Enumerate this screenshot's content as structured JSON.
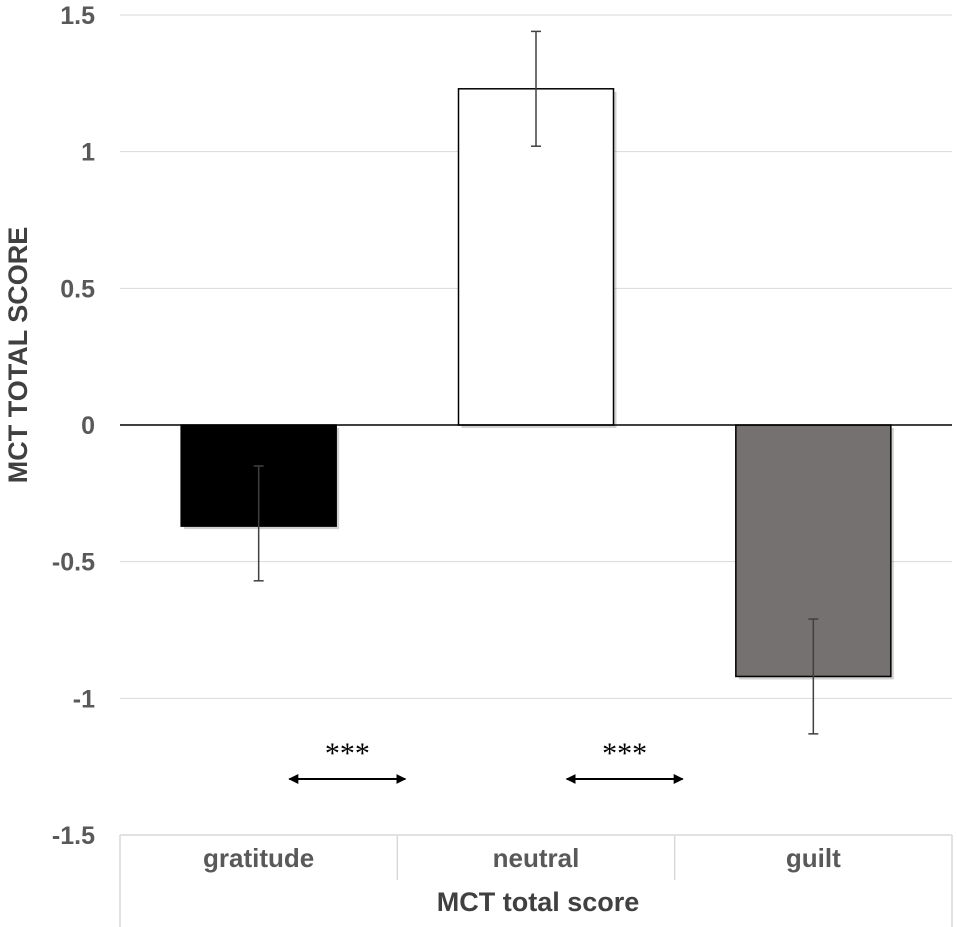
{
  "chart_data": {
    "type": "bar",
    "title": "",
    "categories": [
      "gratitude",
      "neutral",
      "guilt"
    ],
    "values": [
      -0.37,
      1.23,
      -0.92
    ],
    "error_bars": [
      {
        "low": -0.57,
        "high": -0.15
      },
      {
        "low": 1.02,
        "high": 1.44
      },
      {
        "low": -1.13,
        "high": -0.71
      }
    ],
    "bar_colors": [
      "#000000",
      "#ffffff",
      "#767171"
    ],
    "ylabel": "MCT  TOTAL  SCORE",
    "xlabel": "MCT total score",
    "ylim": [
      -1.5,
      1.5
    ],
    "yticks": [
      1.5,
      1,
      0.5,
      0,
      -0.5,
      -1,
      -1.5
    ],
    "ytick_labels": [
      "1.5",
      "1",
      "0.5",
      "0",
      "-0.5",
      "-1",
      "-1.5"
    ],
    "grid": true,
    "legend": "none",
    "annotations": [
      {
        "text": "***",
        "between": [
          "gratitude",
          "neutral"
        ]
      },
      {
        "text": "***",
        "between": [
          "neutral",
          "guilt"
        ]
      }
    ]
  }
}
